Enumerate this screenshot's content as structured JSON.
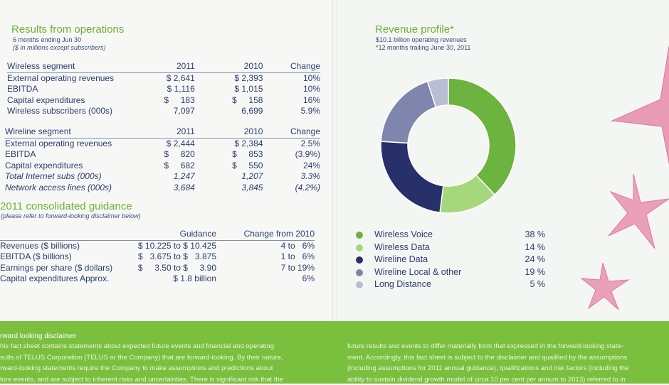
{
  "results": {
    "title": "Results from operations",
    "subtitle1": "6 months ending Jun 30",
    "subtitle2": "($ in millions except subscribers)",
    "wireless": {
      "header": [
        "Wireless segment",
        "2011",
        "2010",
        "Change"
      ],
      "rows": [
        [
          "External operating revenues",
          "$ 2,641",
          "$ 2,393",
          "10%"
        ],
        [
          "EBITDA",
          "$ 1,116",
          "$ 1,015",
          "10%"
        ],
        [
          "Capital expenditures",
          "$     183",
          "$     158",
          "16%"
        ],
        [
          "Wireless subscribers (000s)",
          "7,097",
          "6,699",
          "5.9%"
        ]
      ]
    },
    "wireline": {
      "header": [
        "Wireline segment",
        "2011",
        "2010",
        "Change"
      ],
      "rows": [
        [
          "External operating revenues",
          "$ 2,444",
          "$ 2,384",
          "2.5%"
        ],
        [
          "EBITDA",
          "$     820",
          "$     853",
          "(3.9%)"
        ],
        [
          "Capital expenditures",
          "$     682",
          "$     550",
          "24%"
        ],
        [
          "Total Internet subs (000s)",
          "1,247",
          "1,207",
          "3.3%"
        ],
        [
          "Network access lines (000s)",
          "3,684",
          "3,845",
          "(4.2%)"
        ]
      ]
    }
  },
  "guidance": {
    "title": "2011 consolidated guidance",
    "subtitle": "(please refer to forward-looking disclaimer below)",
    "header": [
      "",
      "Guidance",
      "Change from 2010"
    ],
    "rows": [
      [
        "Revenues ($ billions)",
        "$ 10.225 to $ 10.425",
        "4 to   6%"
      ],
      [
        "EBITDA ($ billions)",
        "$   3.675 to $   3.875",
        "1 to   6%"
      ],
      [
        "Earnings per share ($ dollars)",
        "$     3.50 to $     3.90",
        "7 to 19%"
      ],
      [
        "Capital expenditures Approx.",
        "$ 1.8 billion",
        "6%"
      ]
    ]
  },
  "revenue": {
    "title": "Revenue profile*",
    "subtitle1": "$10.1 billion operating revenues",
    "subtitle2": "*12 months trailing June 30, 2011"
  },
  "chart_data": {
    "type": "pie",
    "categories": [
      "Wireless Voice",
      "Wireless Data",
      "Wireline Data",
      "Wireline Local & other",
      "Long Distance"
    ],
    "values": [
      38,
      14,
      24,
      19,
      5
    ],
    "value_labels": [
      "38 %",
      "14 %",
      "24 %",
      "19 %",
      "5 %"
    ],
    "colors": [
      "#6cb33f",
      "#a6d77c",
      "#27306b",
      "#7f86ad",
      "#b9bdd3"
    ],
    "legend": "bottom"
  },
  "disclaimer": {
    "title": "rward looking disclaimer",
    "left_lines": [
      "his fact sheet contains statements about expected future events and financial and operating",
      "sults of TELUS Corporation (TELUS or the Company) that are forward-looking. By their nature,",
      "rward-looking statements require the Company to make assumptions and predictions about",
      "ture events, and are subject to inherent risks and uncertainties. There is significant risk that the"
    ],
    "right_lines": [
      "future results and events to differ materially from that expressed in the forward-looking state-",
      "ment.  Accordingly, this fact sheet is subject to the disclaimer and qualified by the assumptions",
      "(including assumptions for 2011 annual guidance), qualifications and risk factors (including the",
      "ability to sustain dividend growth model of circa 10 per cent per annum to 2013) referred to in"
    ]
  }
}
